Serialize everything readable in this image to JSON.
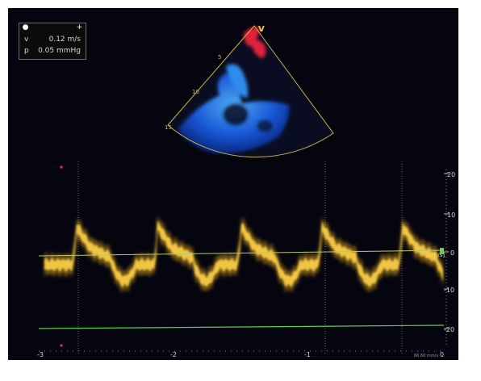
{
  "measurement": {
    "velocity_label": "v",
    "velocity_value": "0.12 m/s",
    "pressure_label": "p",
    "pressure_value": "0.05 mmHg"
  },
  "echo": {
    "marker": "V",
    "depth_labels": [
      "5",
      "10",
      "15"
    ]
  },
  "doppler": {
    "unit_label": "[cm/s]",
    "velocity_ticks": [
      "20",
      "10",
      "0",
      "-10",
      "-20"
    ],
    "time_ticks": [
      "-3",
      "-2",
      "-1",
      "0"
    ],
    "sweep_speed": "66.60 mm/s"
  },
  "colors": {
    "background": "#050510",
    "spectral": "#f2b21c",
    "sector_outline": "#c8b54a",
    "flow_red": "#e2233a",
    "flow_blue": "#1a5de0",
    "baseline": "#b9c96a",
    "green_line": "#5bd24e"
  }
}
